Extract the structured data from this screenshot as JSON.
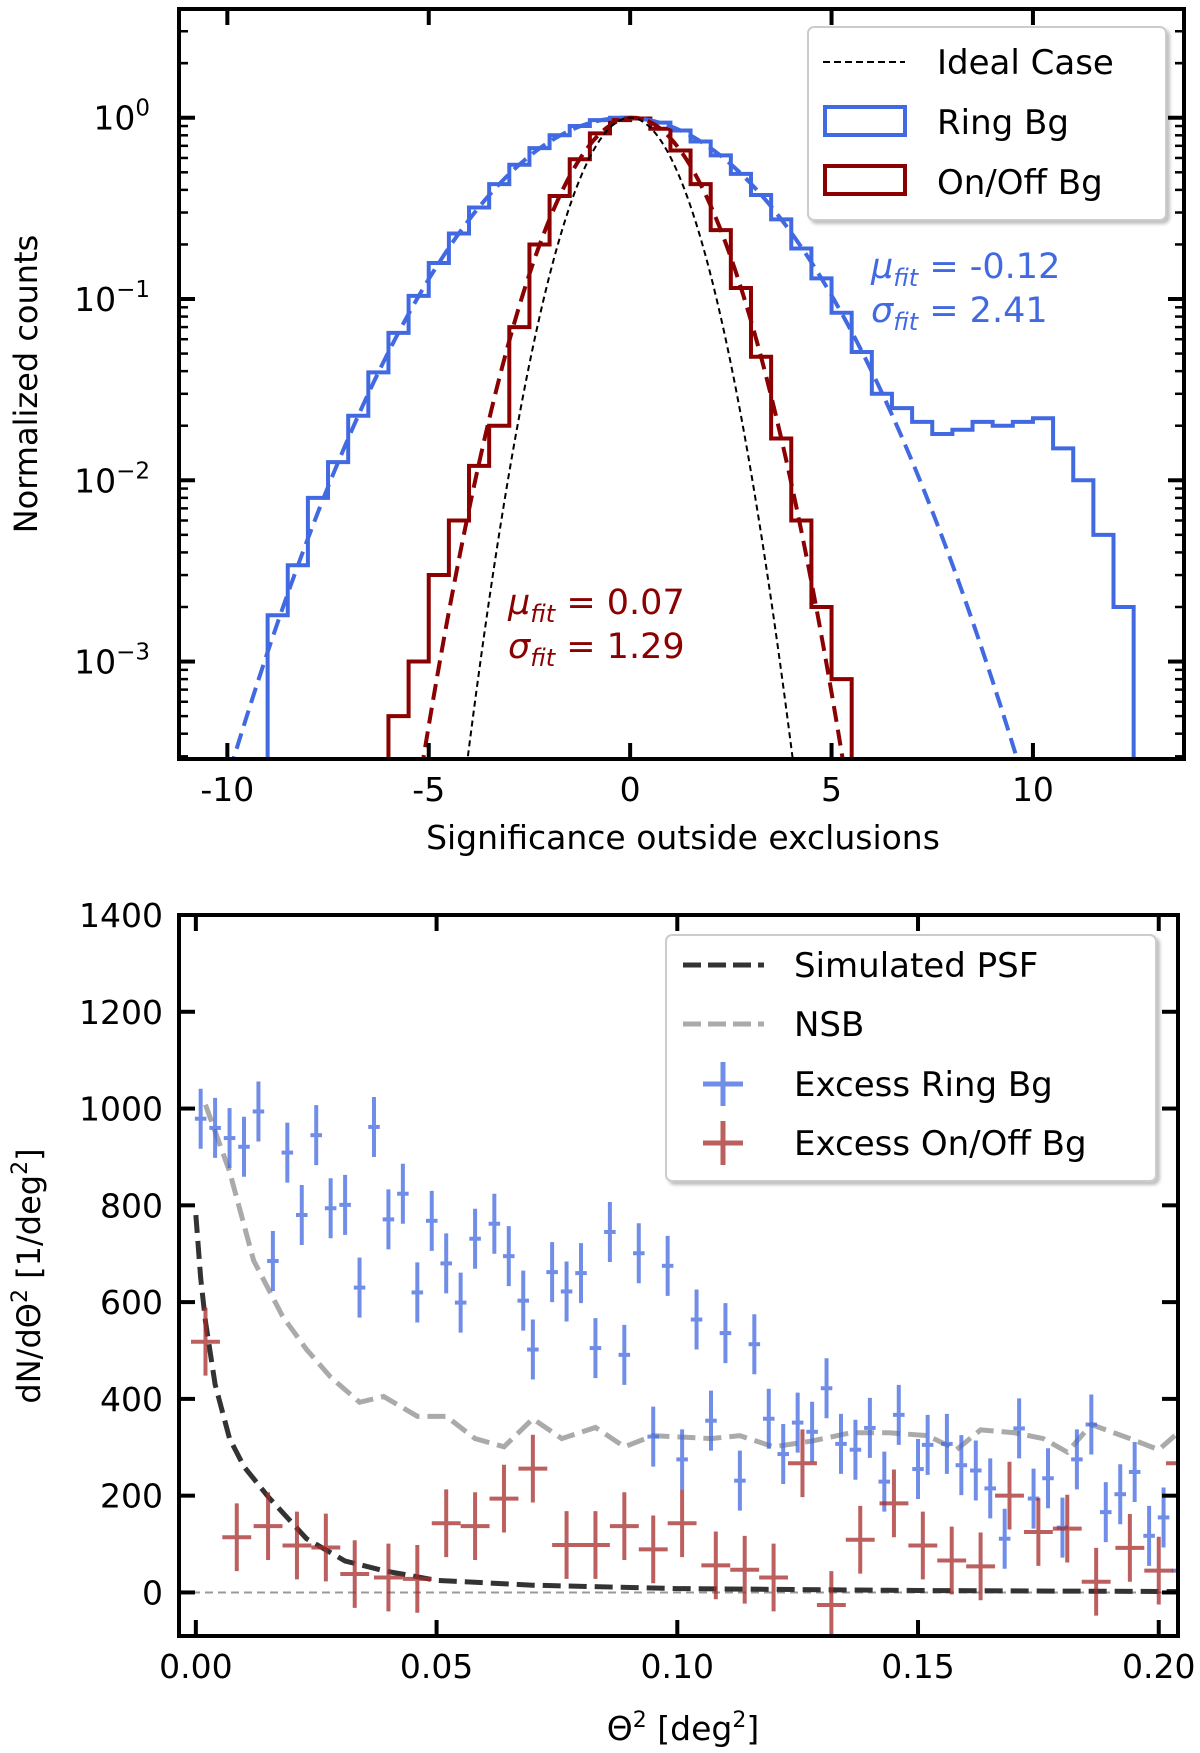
{
  "chart_data": [
    {
      "type": "histogram",
      "xlabel": "Significance outside exclusions",
      "ylabel": "Normalized counts",
      "yscale": "log",
      "xlim": [
        -11.2,
        13.75
      ],
      "ylim": [
        0.00029,
        3.98
      ],
      "xticks": [
        -10,
        -5,
        0,
        5,
        10
      ],
      "xtick_labels": [
        "-10",
        "-5",
        "0",
        "5",
        "10"
      ],
      "yticks": [
        1,
        0.1,
        0.01,
        0.001
      ],
      "ytick_labels": [
        {
          "base": "10",
          "exp": "0"
        },
        {
          "base": "10",
          "exp": "−1"
        },
        {
          "base": "10",
          "exp": "−2"
        },
        {
          "base": "10",
          "exp": "−3"
        }
      ],
      "legend": {
        "placement": "top-right",
        "entries": [
          {
            "label": "Ideal Case",
            "style": "dashed-line",
            "color": "#000000"
          },
          {
            "label": "Ring Bg",
            "style": "step",
            "color": "#4169e1"
          },
          {
            "label": "On/Off Bg",
            "style": "step",
            "color": "#8b0000"
          }
        ]
      },
      "ideal": {
        "mu": 0,
        "sigma": 1,
        "amplitude": 1
      },
      "series": [
        {
          "name": "Ring Bg",
          "color": "#4169e1",
          "bin_width": 0.5,
          "bin_start": -9.0,
          "values": [
            0.0018,
            0.0034,
            0.008,
            0.0126,
            0.0227,
            0.0394,
            0.065,
            0.104,
            0.158,
            0.23,
            0.32,
            0.43,
            0.55,
            0.68,
            0.8,
            0.9,
            0.97,
            1.0,
            0.99,
            0.94,
            0.85,
            0.74,
            0.62,
            0.49,
            0.375,
            0.275,
            0.19,
            0.13,
            0.084,
            0.051,
            0.03,
            0.025,
            0.021,
            0.018,
            0.019,
            0.021,
            0.02,
            0.021,
            0.022,
            0.015,
            0.01,
            0.005,
            0.002
          ],
          "fit": {
            "mu": -0.12,
            "sigma": 2.41,
            "amplitude": 1.0
          },
          "annotation": {
            "mu_symbol": "μ",
            "sigma_symbol": "σ",
            "sub": "fit",
            "mu_text": " = -0.12",
            "sigma_text": " = 2.41"
          }
        },
        {
          "name": "On/Off Bg",
          "color": "#8b0000",
          "bin_width": 0.5,
          "bin_start": -6.0,
          "values": [
            0.0005,
            0.001,
            0.003,
            0.006,
            0.012,
            0.02,
            0.07,
            0.2,
            0.37,
            0.59,
            0.82,
            0.97,
            0.99,
            0.87,
            0.66,
            0.43,
            0.24,
            0.115,
            0.048,
            0.017,
            0.006,
            0.002,
            0.0008
          ],
          "fit": {
            "mu": 0.07,
            "sigma": 1.29,
            "amplitude": 1.0
          },
          "annotation": {
            "mu_symbol": "μ",
            "sigma_symbol": "σ",
            "sub": "fit",
            "mu_text": " = 0.07",
            "sigma_text": " = 1.29"
          }
        }
      ]
    },
    {
      "type": "scatter",
      "xlabel": {
        "base": "Θ",
        "exp": "2",
        "rest": " [deg",
        "unit_exp": "2",
        "close": "]"
      },
      "ylabel": {
        "pre": "dN/dΘ",
        "exp": "2",
        "mid": " [1/deg",
        "exp2": "2",
        "close": "]"
      },
      "xlim": [
        -0.0035,
        0.204
      ],
      "ylim": [
        -90,
        1400
      ],
      "xticks": [
        0,
        0.05,
        0.1,
        0.15,
        0.2
      ],
      "xtick_labels": [
        "0.00",
        "0.05",
        "0.10",
        "0.15",
        "0.20"
      ],
      "yticks": [
        0,
        200,
        400,
        600,
        800,
        1000,
        1200,
        1400
      ],
      "ytick_labels": [
        "0",
        "200",
        "400",
        "600",
        "800",
        "1000",
        "1200",
        "1400"
      ],
      "legend": {
        "placement": "top-right",
        "entries": [
          {
            "label": "Simulated PSF",
            "style": "dashed-line",
            "color": "#333333"
          },
          {
            "label": "NSB",
            "style": "dashed-line",
            "color": "#aaaaaa"
          },
          {
            "label": "Excess Ring Bg",
            "style": "errorbar",
            "color": "#4169e1"
          },
          {
            "label": "Excess On/Off Bg",
            "style": "errorbar",
            "color": "#a52a2a"
          }
        ]
      },
      "lines": [
        {
          "name": "Simulated PSF",
          "color": "#333333",
          "x": [
            0,
            0.001,
            0.002,
            0.004,
            0.007,
            0.01,
            0.015,
            0.023,
            0.031,
            0.039,
            0.05,
            0.07,
            0.1,
            0.15,
            0.2,
            0.204
          ],
          "y": [
            780,
            650,
            560,
            430,
            318,
            260,
            198,
            111,
            65,
            45,
            25,
            15,
            8,
            4,
            2,
            2
          ]
        },
        {
          "name": "NSB",
          "color": "#aaaaaa",
          "x": [
            0.002,
            0.007,
            0.012,
            0.018,
            0.023,
            0.028,
            0.034,
            0.039,
            0.046,
            0.052,
            0.058,
            0.064,
            0.07,
            0.076,
            0.083,
            0.089,
            0.095,
            0.107,
            0.113,
            0.12,
            0.128,
            0.136,
            0.144,
            0.152,
            0.158,
            0.163,
            0.17,
            0.176,
            0.181,
            0.186,
            0.194,
            0.2,
            0.204
          ],
          "y": [
            1008,
            870,
            686,
            571,
            502,
            445,
            393,
            405,
            364,
            364,
            318,
            301,
            359,
            318,
            341,
            301,
            324,
            318,
            324,
            301,
            313,
            330,
            330,
            324,
            295,
            336,
            330,
            318,
            290,
            347,
            318,
            295,
            330
          ]
        },
        {
          "name": "Zero",
          "color": "#999999",
          "x": [
            -0.0035,
            0.204
          ],
          "y": [
            0,
            0
          ]
        }
      ],
      "series": [
        {
          "name": "Excess Ring Bg",
          "color": "#4169e1",
          "xerr": 0.0012,
          "yerr": 62,
          "points": [
            [
              0.001,
              979
            ],
            [
              0.004,
              960
            ],
            [
              0.007,
              939
            ],
            [
              0.01,
              921
            ],
            [
              0.013,
              994
            ],
            [
              0.016,
              685
            ],
            [
              0.019,
              909
            ],
            [
              0.022,
              780
            ],
            [
              0.025,
              945
            ],
            [
              0.028,
              794
            ],
            [
              0.031,
              801
            ],
            [
              0.034,
              630
            ],
            [
              0.037,
              962
            ],
            [
              0.04,
              771
            ],
            [
              0.043,
              824
            ],
            [
              0.046,
              620
            ],
            [
              0.049,
              768
            ],
            [
              0.052,
              680
            ],
            [
              0.055,
              599
            ],
            [
              0.058,
              731
            ],
            [
              0.062,
              762
            ],
            [
              0.065,
              695
            ],
            [
              0.068,
              603
            ],
            [
              0.07,
              502
            ],
            [
              0.074,
              662
            ],
            [
              0.077,
              622
            ],
            [
              0.08,
              660
            ],
            [
              0.083,
              505
            ],
            [
              0.086,
              745
            ],
            [
              0.089,
              491
            ],
            [
              0.092,
              701
            ],
            [
              0.095,
              322
            ],
            [
              0.098,
              675
            ],
            [
              0.101,
              275
            ],
            [
              0.104,
              564
            ],
            [
              0.107,
              355
            ],
            [
              0.11,
              536
            ],
            [
              0.113,
              231
            ],
            [
              0.116,
              513
            ],
            [
              0.119,
              359
            ],
            [
              0.122,
              286
            ],
            [
              0.125,
              351
            ],
            [
              0.128,
              332
            ],
            [
              0.131,
              422
            ],
            [
              0.134,
              307
            ],
            [
              0.137,
              295
            ],
            [
              0.14,
              340
            ],
            [
              0.143,
              229
            ],
            [
              0.146,
              367
            ],
            [
              0.15,
              255
            ],
            [
              0.152,
              305
            ],
            [
              0.156,
              307
            ],
            [
              0.159,
              263
            ],
            [
              0.162,
              252
            ],
            [
              0.165,
              215
            ],
            [
              0.168,
              111
            ],
            [
              0.171,
              339
            ],
            [
              0.174,
              194
            ],
            [
              0.177,
              236
            ],
            [
              0.18,
              134
            ],
            [
              0.183,
              275
            ],
            [
              0.186,
              347
            ],
            [
              0.189,
              166
            ],
            [
              0.192,
              203
            ],
            [
              0.195,
              249
            ],
            [
              0.198,
              117
            ],
            [
              0.201,
              155
            ],
            [
              0.204,
              45
            ]
          ]
        },
        {
          "name": "Excess On/Off Bg",
          "color": "#a52a2a",
          "xerr": 0.003,
          "yerr": 70,
          "points": [
            [
              0.002,
              518
            ],
            [
              0.0085,
              114
            ],
            [
              0.015,
              137
            ],
            [
              0.021,
              97
            ],
            [
              0.027,
              93
            ],
            [
              0.033,
              38
            ],
            [
              0.04,
              31
            ],
            [
              0.046,
              28
            ],
            [
              0.052,
              143
            ],
            [
              0.058,
              137
            ],
            [
              0.064,
              194
            ],
            [
              0.07,
              256
            ],
            [
              0.077,
              98
            ],
            [
              0.083,
              98
            ],
            [
              0.089,
              137
            ],
            [
              0.095,
              89
            ],
            [
              0.101,
              143
            ],
            [
              0.108,
              56
            ],
            [
              0.114,
              47
            ],
            [
              0.12,
              31
            ],
            [
              0.126,
              267
            ],
            [
              0.132,
              -26
            ],
            [
              0.138,
              109
            ],
            [
              0.145,
              184
            ],
            [
              0.151,
              97
            ],
            [
              0.157,
              66
            ],
            [
              0.163,
              54
            ],
            [
              0.169,
              200
            ],
            [
              0.175,
              125
            ],
            [
              0.181,
              132
            ],
            [
              0.187,
              22
            ],
            [
              0.194,
              92
            ],
            [
              0.2,
              45
            ],
            [
              0.2045,
              267
            ]
          ]
        }
      ]
    }
  ]
}
